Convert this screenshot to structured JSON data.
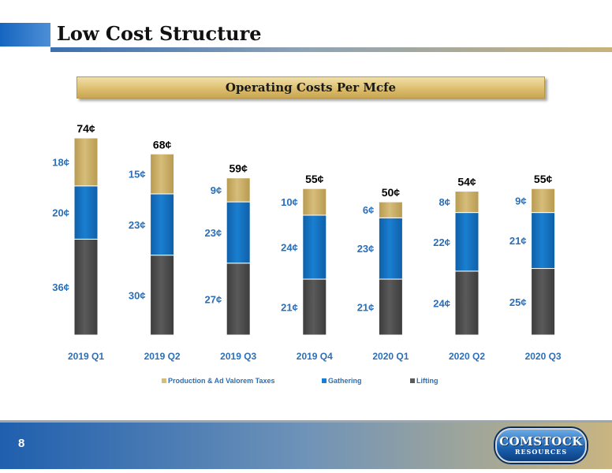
{
  "slide": {
    "title": "Low Cost Structure",
    "page_number": "8"
  },
  "logo": {
    "name": "COMSTOCK",
    "sub": "RESOURCES"
  },
  "colors": {
    "lifting": "#5a5a5a",
    "gathering": "#1a7fd0",
    "production_taxes": "#d6bd7a",
    "label_blue": "#2b6fb8",
    "accent_blue": "#1565c0"
  },
  "chart_data": {
    "type": "bar",
    "stacked": true,
    "title": "Operating Costs Per Mcfe",
    "categories": [
      "2019 Q1",
      "2019 Q2",
      "2019 Q3",
      "2019 Q4",
      "2020 Q1",
      "2020 Q2",
      "2020 Q3"
    ],
    "series": [
      {
        "name": "Lifting",
        "values": [
          36,
          30,
          27,
          21,
          21,
          24,
          25
        ],
        "labels": [
          "36¢",
          "30¢",
          "27¢",
          "21¢",
          "21¢",
          "24¢",
          "25¢"
        ]
      },
      {
        "name": "Gathering",
        "values": [
          20,
          23,
          23,
          24,
          23,
          22,
          21
        ],
        "labels": [
          "20¢",
          "23¢",
          "23¢",
          "24¢",
          "23¢",
          "22¢",
          "21¢"
        ]
      },
      {
        "name": "Production & Ad Valorem Taxes",
        "values": [
          18,
          15,
          9,
          10,
          6,
          8,
          9
        ],
        "labels": [
          "18¢",
          "15¢",
          "9¢",
          "10¢",
          "6¢",
          "8¢",
          "9¢"
        ]
      }
    ],
    "totals": [
      74,
      68,
      59,
      55,
      50,
      54,
      55
    ],
    "total_labels": [
      "74¢",
      "68¢",
      "59¢",
      "55¢",
      "50¢",
      "54¢",
      "55¢"
    ],
    "legend": [
      "Production & Ad Valorem Taxes",
      "Gathering",
      "Lifting"
    ],
    "legend_position": "bottom",
    "ylim": [
      0,
      74
    ],
    "grid": false
  }
}
